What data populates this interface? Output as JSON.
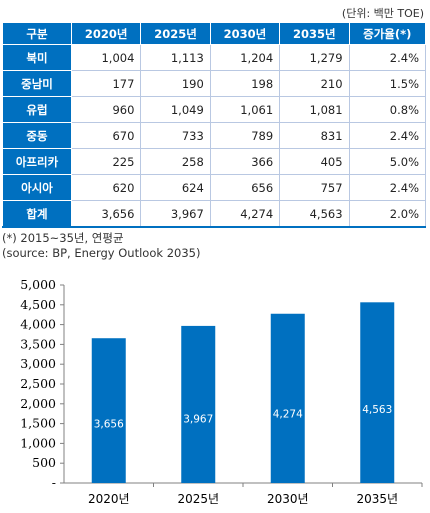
{
  "unit_note": "(단위: 백만 TOE)",
  "table": {
    "headers": [
      "구분",
      "2020년",
      "2025년",
      "2030년",
      "2035년",
      "증가율(*)"
    ],
    "rows": [
      {
        "label": "북미",
        "cells": [
          "1,004",
          "1,113",
          "1,204",
          "1,279",
          "2.4%"
        ]
      },
      {
        "label": "중남미",
        "cells": [
          "177",
          "190",
          "198",
          "210",
          "1.5%"
        ]
      },
      {
        "label": "유럽",
        "cells": [
          "960",
          "1,049",
          "1,061",
          "1,081",
          "0.8%"
        ]
      },
      {
        "label": "중동",
        "cells": [
          "670",
          "733",
          "789",
          "831",
          "2.4%"
        ]
      },
      {
        "label": "아프리카",
        "cells": [
          "225",
          "258",
          "366",
          "405",
          "5.0%"
        ]
      },
      {
        "label": "아시아",
        "cells": [
          "620",
          "624",
          "656",
          "757",
          "2.4%"
        ]
      },
      {
        "label": "합계",
        "cells": [
          "3,656",
          "3,967",
          "4,274",
          "4,563",
          "2.0%"
        ]
      }
    ]
  },
  "footnote": "(*) 2015~35년, 연평균",
  "source": "(source: BP, Energy Outlook 2035)",
  "chart_data": {
    "type": "bar",
    "categories": [
      "2020년",
      "2025년",
      "2030년",
      "2035년"
    ],
    "values": [
      3656,
      3967,
      4274,
      4563
    ],
    "value_labels": [
      "3,656",
      "3,967",
      "4,274",
      "4,563"
    ],
    "ylim": [
      0,
      5000
    ],
    "yticks": [
      0,
      500,
      1000,
      1500,
      2000,
      2500,
      3000,
      3500,
      4000,
      4500,
      5000
    ],
    "ytick_labels": [
      "-",
      "500",
      "1,000",
      "1,500",
      "2,000",
      "2,500",
      "3,000",
      "3,500",
      "4,000",
      "4,500",
      "5,000"
    ],
    "grid": false,
    "bar_color": "#0070c0"
  }
}
